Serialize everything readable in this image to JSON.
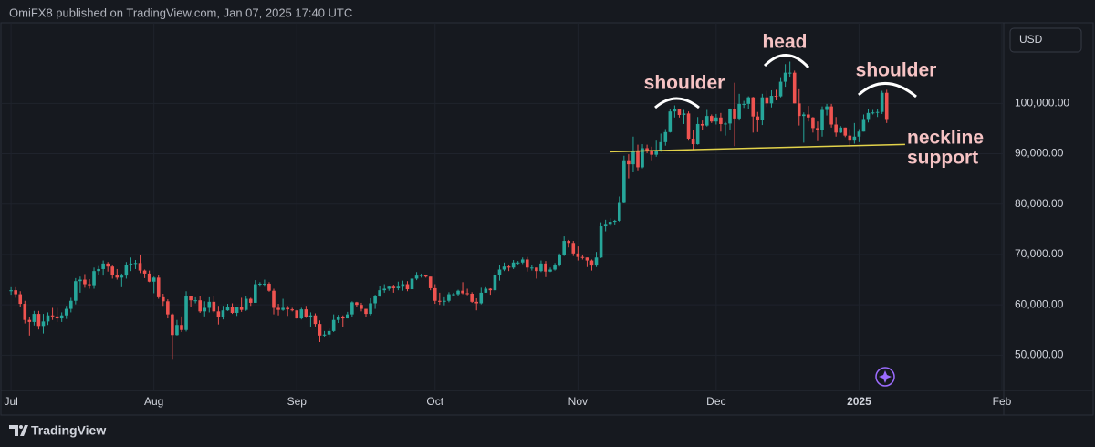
{
  "header": "OmiFX8 published on TradingView.com, Jan 07, 2025 17:40 UTC",
  "footer": "TradingView",
  "currency": "USD",
  "chart_data": {
    "type": "candlestick",
    "up_color": "#26a69a",
    "down_color": "#ef5350",
    "xlim": [
      -2.4,
      215.4
    ],
    "xticks": [
      {
        "value": 0,
        "label": "Jul"
      },
      {
        "value": 31,
        "label": "Aug"
      },
      {
        "value": 62,
        "label": "Sep"
      },
      {
        "value": 92,
        "label": "Oct"
      },
      {
        "value": 123,
        "label": "Nov"
      },
      {
        "value": 153,
        "label": "Dec"
      },
      {
        "value": 184,
        "label": "2025"
      },
      {
        "value": 215,
        "label": "Feb"
      }
    ],
    "ylim": [
      43000,
      116000
    ],
    "yticks": [
      {
        "value": 50000,
        "label": "50,000.00"
      },
      {
        "value": 60000,
        "label": "60,000.00"
      },
      {
        "value": 70000,
        "label": "70,000.00"
      },
      {
        "value": 80000,
        "label": "80,000.00"
      },
      {
        "value": 90000,
        "label": "90,000.00"
      },
      {
        "value": 100000,
        "label": "100,000.00"
      }
    ],
    "grid": true,
    "candles": [
      [
        62700,
        63500,
        62000,
        62900
      ],
      [
        62900,
        63500,
        61400,
        62100
      ],
      [
        62100,
        62700,
        59500,
        60200
      ],
      [
        60200,
        60800,
        56300,
        57000
      ],
      [
        57000,
        57600,
        53900,
        56600
      ],
      [
        56600,
        58800,
        55900,
        58200
      ],
      [
        58200,
        58800,
        55100,
        55800
      ],
      [
        55800,
        58200,
        54300,
        56700
      ],
      [
        56700,
        58500,
        56000,
        57900
      ],
      [
        57900,
        59400,
        57000,
        57700
      ],
      [
        57700,
        59400,
        56600,
        57300
      ],
      [
        57300,
        58500,
        56600,
        57900
      ],
      [
        57900,
        59800,
        57200,
        59200
      ],
      [
        59200,
        61400,
        58500,
        60800
      ],
      [
        60800,
        65300,
        60100,
        64700
      ],
      [
        64700,
        65600,
        62400,
        65000
      ],
      [
        65000,
        66100,
        63400,
        64100
      ],
      [
        64100,
        65100,
        63200,
        63900
      ],
      [
        63900,
        67400,
        63200,
        66700
      ],
      [
        66700,
        67700,
        66000,
        67100
      ],
      [
        67100,
        68800,
        65800,
        68200
      ],
      [
        68200,
        68500,
        66600,
        67600
      ],
      [
        67600,
        67800,
        65200,
        65900
      ],
      [
        65900,
        67100,
        65000,
        65400
      ],
      [
        65400,
        66200,
        63500,
        65800
      ],
      [
        65800,
        68500,
        65200,
        67900
      ],
      [
        67900,
        69400,
        66700,
        68200
      ],
      [
        68200,
        68900,
        67100,
        68300
      ],
      [
        68300,
        70000,
        66300,
        66800
      ],
      [
        66800,
        67000,
        65300,
        66200
      ],
      [
        66200,
        66800,
        64500,
        64600
      ],
      [
        64600,
        65600,
        62300,
        65400
      ],
      [
        65400,
        65900,
        61200,
        61500
      ],
      [
        61500,
        62200,
        59800,
        60700
      ],
      [
        60700,
        61100,
        57300,
        58100
      ],
      [
        58100,
        58300,
        49100,
        54000
      ],
      [
        54000,
        57000,
        53900,
        56000
      ],
      [
        56000,
        57700,
        54600,
        55000
      ],
      [
        55000,
        62700,
        54700,
        61700
      ],
      [
        61700,
        61800,
        59600,
        60900
      ],
      [
        60900,
        61500,
        60300,
        60900
      ],
      [
        60900,
        61800,
        58400,
        58700
      ],
      [
        58700,
        60700,
        57700,
        59400
      ],
      [
        59400,
        61500,
        58500,
        60600
      ],
      [
        60600,
        61800,
        58400,
        58700
      ],
      [
        58700,
        59800,
        56100,
        57600
      ],
      [
        57600,
        59800,
        57100,
        58900
      ],
      [
        58900,
        60200,
        58800,
        59500
      ],
      [
        59500,
        60300,
        58200,
        58400
      ],
      [
        58400,
        59600,
        57800,
        59500
      ],
      [
        59500,
        61400,
        58600,
        59000
      ],
      [
        59000,
        61800,
        58800,
        61200
      ],
      [
        61200,
        61400,
        59800,
        60400
      ],
      [
        60400,
        64900,
        60400,
        64100
      ],
      [
        64100,
        64500,
        63600,
        64200
      ],
      [
        64200,
        65000,
        63600,
        64200
      ],
      [
        64200,
        64500,
        62600,
        62800
      ],
      [
        62800,
        63200,
        58100,
        59400
      ],
      [
        59400,
        60200,
        57900,
        59000
      ],
      [
        59000,
        61200,
        58800,
        59400
      ],
      [
        59400,
        59800,
        57800,
        59100
      ],
      [
        59100,
        59400,
        58700,
        58900
      ],
      [
        58900,
        59000,
        57200,
        57300
      ],
      [
        57300,
        59400,
        57100,
        59100
      ],
      [
        59100,
        59800,
        57400,
        57500
      ],
      [
        57500,
        58500,
        55600,
        57900
      ],
      [
        57900,
        58300,
        55700,
        56200
      ],
      [
        56200,
        56900,
        52600,
        53900
      ],
      [
        53900,
        54800,
        53700,
        54100
      ],
      [
        54100,
        55300,
        53600,
        54800
      ],
      [
        54800,
        58100,
        54600,
        57000
      ],
      [
        57000,
        58000,
        56400,
        57600
      ],
      [
        57600,
        57900,
        55600,
        57300
      ],
      [
        57300,
        58600,
        57300,
        58100
      ],
      [
        58100,
        60700,
        57600,
        60500
      ],
      [
        60500,
        60600,
        59500,
        60000
      ],
      [
        60000,
        60400,
        58700,
        59200
      ],
      [
        59200,
        59200,
        57500,
        58200
      ],
      [
        58200,
        61300,
        57900,
        60300
      ],
      [
        60300,
        62000,
        59200,
        61800
      ],
      [
        61800,
        63800,
        61600,
        62900
      ],
      [
        62900,
        64100,
        62400,
        63200
      ],
      [
        63200,
        63700,
        62800,
        63600
      ],
      [
        63600,
        64000,
        62400,
        63300
      ],
      [
        63300,
        64600,
        62900,
        63600
      ],
      [
        63600,
        64800,
        62800,
        64100
      ],
      [
        64100,
        64700,
        62700,
        63100
      ],
      [
        63100,
        65800,
        62700,
        65200
      ],
      [
        65200,
        66500,
        64900,
        65800
      ],
      [
        65800,
        66200,
        65400,
        65900
      ],
      [
        65900,
        66000,
        65400,
        65600
      ],
      [
        65600,
        65600,
        62900,
        63300
      ],
      [
        63300,
        64100,
        60200,
        60800
      ],
      [
        60800,
        62400,
        60000,
        60600
      ],
      [
        60600,
        61500,
        59900,
        60800
      ],
      [
        60800,
        62500,
        60500,
        62100
      ],
      [
        62100,
        62400,
        61700,
        62100
      ],
      [
        62100,
        63000,
        61800,
        62800
      ],
      [
        62800,
        64500,
        62100,
        62300
      ],
      [
        62300,
        63200,
        61900,
        62200
      ],
      [
        62200,
        62500,
        60400,
        60600
      ],
      [
        60600,
        61300,
        58900,
        60300
      ],
      [
        60300,
        63400,
        60100,
        62400
      ],
      [
        62400,
        63500,
        62400,
        63200
      ],
      [
        63200,
        63300,
        62000,
        62900
      ],
      [
        62900,
        66500,
        62400,
        66000
      ],
      [
        66000,
        67900,
        64800,
        67000
      ],
      [
        67000,
        68400,
        66700,
        67600
      ],
      [
        67600,
        67900,
        66700,
        67400
      ],
      [
        67400,
        68900,
        67100,
        68400
      ],
      [
        68400,
        68700,
        68000,
        68400
      ],
      [
        68400,
        69400,
        68100,
        69000
      ],
      [
        69000,
        69500,
        66600,
        67400
      ],
      [
        67400,
        67900,
        66800,
        67400
      ],
      [
        67400,
        67400,
        65200,
        66700
      ],
      [
        66700,
        68800,
        66500,
        68200
      ],
      [
        68200,
        68700,
        65500,
        66600
      ],
      [
        66600,
        67400,
        66500,
        67000
      ],
      [
        67000,
        68300,
        66800,
        68000
      ],
      [
        68000,
        70200,
        67600,
        69900
      ],
      [
        69900,
        73600,
        69700,
        72700
      ],
      [
        72700,
        72900,
        71400,
        72300
      ],
      [
        72300,
        72700,
        69700,
        70200
      ],
      [
        70200,
        71600,
        68800,
        69500
      ],
      [
        69500,
        70000,
        69000,
        69400
      ],
      [
        69400,
        69400,
        67500,
        68800
      ],
      [
        68800,
        69000,
        66800,
        67800
      ],
      [
        67800,
        70500,
        67500,
        69400
      ],
      [
        69400,
        76400,
        69300,
        75600
      ],
      [
        75600,
        76900,
        74600,
        75900
      ],
      [
        75900,
        77200,
        75600,
        76500
      ],
      [
        76500,
        76900,
        75800,
        76700
      ],
      [
        76700,
        81500,
        76500,
        80400
      ],
      [
        80400,
        89600,
        80200,
        88700
      ],
      [
        88700,
        89900,
        85100,
        87900
      ],
      [
        87900,
        93400,
        86300,
        90500
      ],
      [
        90500,
        91800,
        86700,
        87300
      ],
      [
        87300,
        91900,
        87100,
        91100
      ],
      [
        91100,
        91800,
        90100,
        90600
      ],
      [
        90600,
        91400,
        88700,
        89800
      ],
      [
        89800,
        92600,
        89400,
        90500
      ],
      [
        90500,
        94000,
        90400,
        92300
      ],
      [
        92300,
        94900,
        91600,
        94300
      ],
      [
        94300,
        98900,
        94200,
        98400
      ],
      [
        98400,
        99600,
        97200,
        98900
      ],
      [
        98900,
        98800,
        97200,
        97700
      ],
      [
        97700,
        98700,
        95900,
        98000
      ],
      [
        98000,
        98400,
        92600,
        93000
      ],
      [
        93000,
        94800,
        90800,
        91900
      ],
      [
        91900,
        97300,
        91800,
        95900
      ],
      [
        95900,
        96600,
        94700,
        95600
      ],
      [
        95600,
        98700,
        95400,
        97500
      ],
      [
        97500,
        97800,
        96100,
        96400
      ],
      [
        96400,
        97900,
        95800,
        97200
      ],
      [
        97200,
        98100,
        94400,
        95900
      ],
      [
        95900,
        96300,
        93600,
        96000
      ],
      [
        96000,
        99000,
        94700,
        98800
      ],
      [
        98800,
        104100,
        91500,
        97000
      ],
      [
        97000,
        101900,
        96600,
        99900
      ],
      [
        99900,
        100500,
        99100,
        99900
      ],
      [
        99900,
        101400,
        98800,
        101200
      ],
      [
        101200,
        101300,
        94200,
        97400
      ],
      [
        97400,
        98300,
        94300,
        96700
      ],
      [
        96700,
        101900,
        95700,
        101200
      ],
      [
        101200,
        102500,
        99300,
        100000
      ],
      [
        100000,
        102600,
        99200,
        101500
      ],
      [
        101500,
        102700,
        100600,
        101400
      ],
      [
        101400,
        105200,
        101200,
        104300
      ],
      [
        104300,
        107800,
        103300,
        106100
      ],
      [
        106100,
        108300,
        105300,
        106100
      ],
      [
        106100,
        106500,
        100000,
        100000
      ],
      [
        100000,
        102800,
        95600,
        97500
      ],
      [
        97500,
        98200,
        92200,
        97800
      ],
      [
        97800,
        99500,
        96400,
        97200
      ],
      [
        97200,
        97300,
        94200,
        95100
      ],
      [
        95100,
        96400,
        92500,
        94700
      ],
      [
        94700,
        99400,
        93400,
        98700
      ],
      [
        98700,
        99900,
        97600,
        99400
      ],
      [
        99400,
        99900,
        95200,
        95800
      ],
      [
        95800,
        97300,
        93400,
        94200
      ],
      [
        94200,
        95500,
        94100,
        95200
      ],
      [
        95200,
        95200,
        93300,
        93600
      ],
      [
        93600,
        94900,
        91400,
        92600
      ],
      [
        92600,
        96100,
        92000,
        93400
      ],
      [
        93400,
        94900,
        92300,
        94400
      ],
      [
        94400,
        97800,
        94400,
        96900
      ],
      [
        96900,
        98900,
        96200,
        98100
      ],
      [
        98100,
        98700,
        97800,
        98200
      ],
      [
        98200,
        98800,
        97300,
        98300
      ],
      [
        98300,
        102500,
        97900,
        102100
      ],
      [
        102100,
        102700,
        96100,
        96900
      ]
    ],
    "neckline": {
      "x": [
        130,
        194
      ],
      "y": [
        90400,
        91850
      ],
      "color": "#e2d24a"
    },
    "annotations": [
      "shoulder",
      "head",
      "shoulder",
      "neckline",
      "support"
    ]
  }
}
